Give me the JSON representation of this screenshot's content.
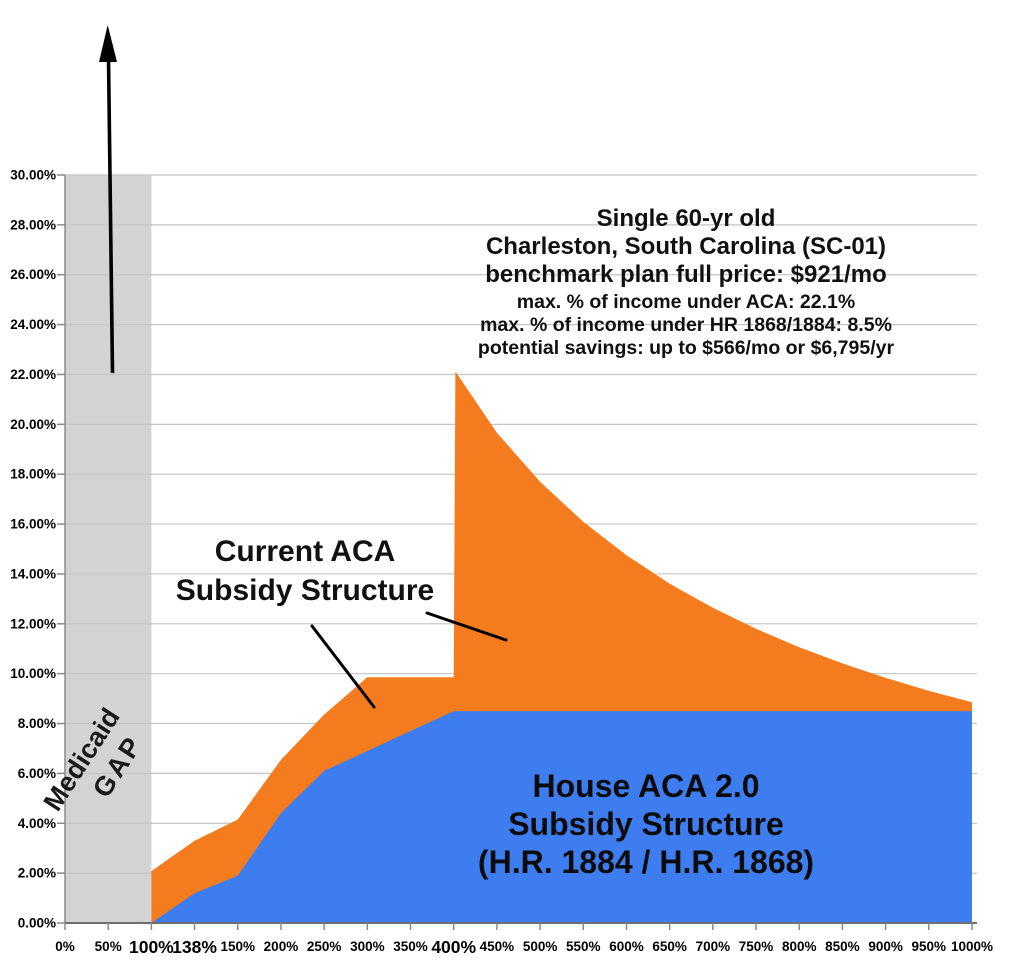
{
  "chart_data": {
    "type": "area",
    "title": "",
    "categories": [
      "0%",
      "50%",
      "100%",
      "138%",
      "150%",
      "200%",
      "250%",
      "300%",
      "350%",
      "400%",
      "450%",
      "500%",
      "550%",
      "600%",
      "650%",
      "700%",
      "750%",
      "800%",
      "850%",
      "900%",
      "950%",
      "1000%"
    ],
    "emphasized_x_labels": [
      "100%",
      "138%",
      "400%"
    ],
    "y_tick_labels": [
      "0.00%",
      "2.00%",
      "4.00%",
      "6.00%",
      "8.00%",
      "10.00%",
      "12.00%",
      "14.00%",
      "16.00%",
      "18.00%",
      "20.00%",
      "22.00%",
      "24.00%",
      "26.00%",
      "28.00%",
      "30.00%"
    ],
    "ylim": [
      0,
      30
    ],
    "grid": true,
    "legend_position": "none",
    "series": [
      {
        "name": "Current ACA Subsidy Structure",
        "color": "#F57C1E",
        "points": [
          [
            "100%",
            2.08
          ],
          [
            "138%",
            3.3
          ],
          [
            "150%",
            4.15
          ],
          [
            "200%",
            6.54
          ],
          [
            "250%",
            8.36
          ],
          [
            "300%",
            9.86
          ],
          [
            "350%",
            9.86
          ],
          [
            "400%",
            9.86
          ],
          [
            "400% (cliff)",
            22.12
          ],
          [
            "450%",
            19.66
          ],
          [
            "500%",
            17.7
          ],
          [
            "550%",
            16.09
          ],
          [
            "600%",
            14.75
          ],
          [
            "650%",
            13.61
          ],
          [
            "700%",
            12.64
          ],
          [
            "750%",
            11.8
          ],
          [
            "800%",
            11.06
          ],
          [
            "850%",
            10.41
          ],
          [
            "900%",
            9.83
          ],
          [
            "950%",
            9.31
          ],
          [
            "1000%",
            8.85
          ]
        ]
      },
      {
        "name": "House ACA 2.0 Subsidy Structure (H.R. 1884 / H.R. 1868)",
        "color": "#3E7DF0",
        "points": [
          [
            "100%",
            0
          ],
          [
            "138%",
            1.2
          ],
          [
            "150%",
            1.9
          ],
          [
            "200%",
            4.4
          ],
          [
            "250%",
            6.1
          ],
          [
            "300%",
            6.9
          ],
          [
            "350%",
            7.7
          ],
          [
            "400%",
            8.5
          ],
          [
            "450%",
            8.5
          ],
          [
            "500%",
            8.5
          ],
          [
            "550%",
            8.5
          ],
          [
            "600%",
            8.5
          ],
          [
            "650%",
            8.5
          ],
          [
            "700%",
            8.5
          ],
          [
            "750%",
            8.5
          ],
          [
            "800%",
            8.5
          ],
          [
            "850%",
            8.5
          ],
          [
            "900%",
            8.5
          ],
          [
            "950%",
            8.5
          ],
          [
            "1000%",
            8.5
          ]
        ]
      }
    ],
    "medicaid_gap_band": {
      "from": "0%",
      "to": "100%",
      "color": "#D3D3D3"
    }
  },
  "labels": {
    "medicaid_gap": {
      "line1": "Medicaid",
      "line2": "GAP"
    },
    "current_aca": {
      "line1": "Current ACA",
      "line2": "Subsidy Structure"
    },
    "house_aca": {
      "line1": "House ACA 2.0",
      "line2": "Subsidy Structure",
      "line3": "(H.R. 1884 / H.R. 1868)"
    },
    "annotation": {
      "line1": "Single 60-yr old",
      "line2": "Charleston, South Carolina (SC-01)",
      "line3": "benchmark plan full price: $921/mo",
      "line4": "max. % of income under ACA: 22.1%",
      "line5": "max. % of income under HR 1868/1884: 8.5%",
      "line6": "potential savings: up to $566/mo or $6,795/yr"
    }
  }
}
